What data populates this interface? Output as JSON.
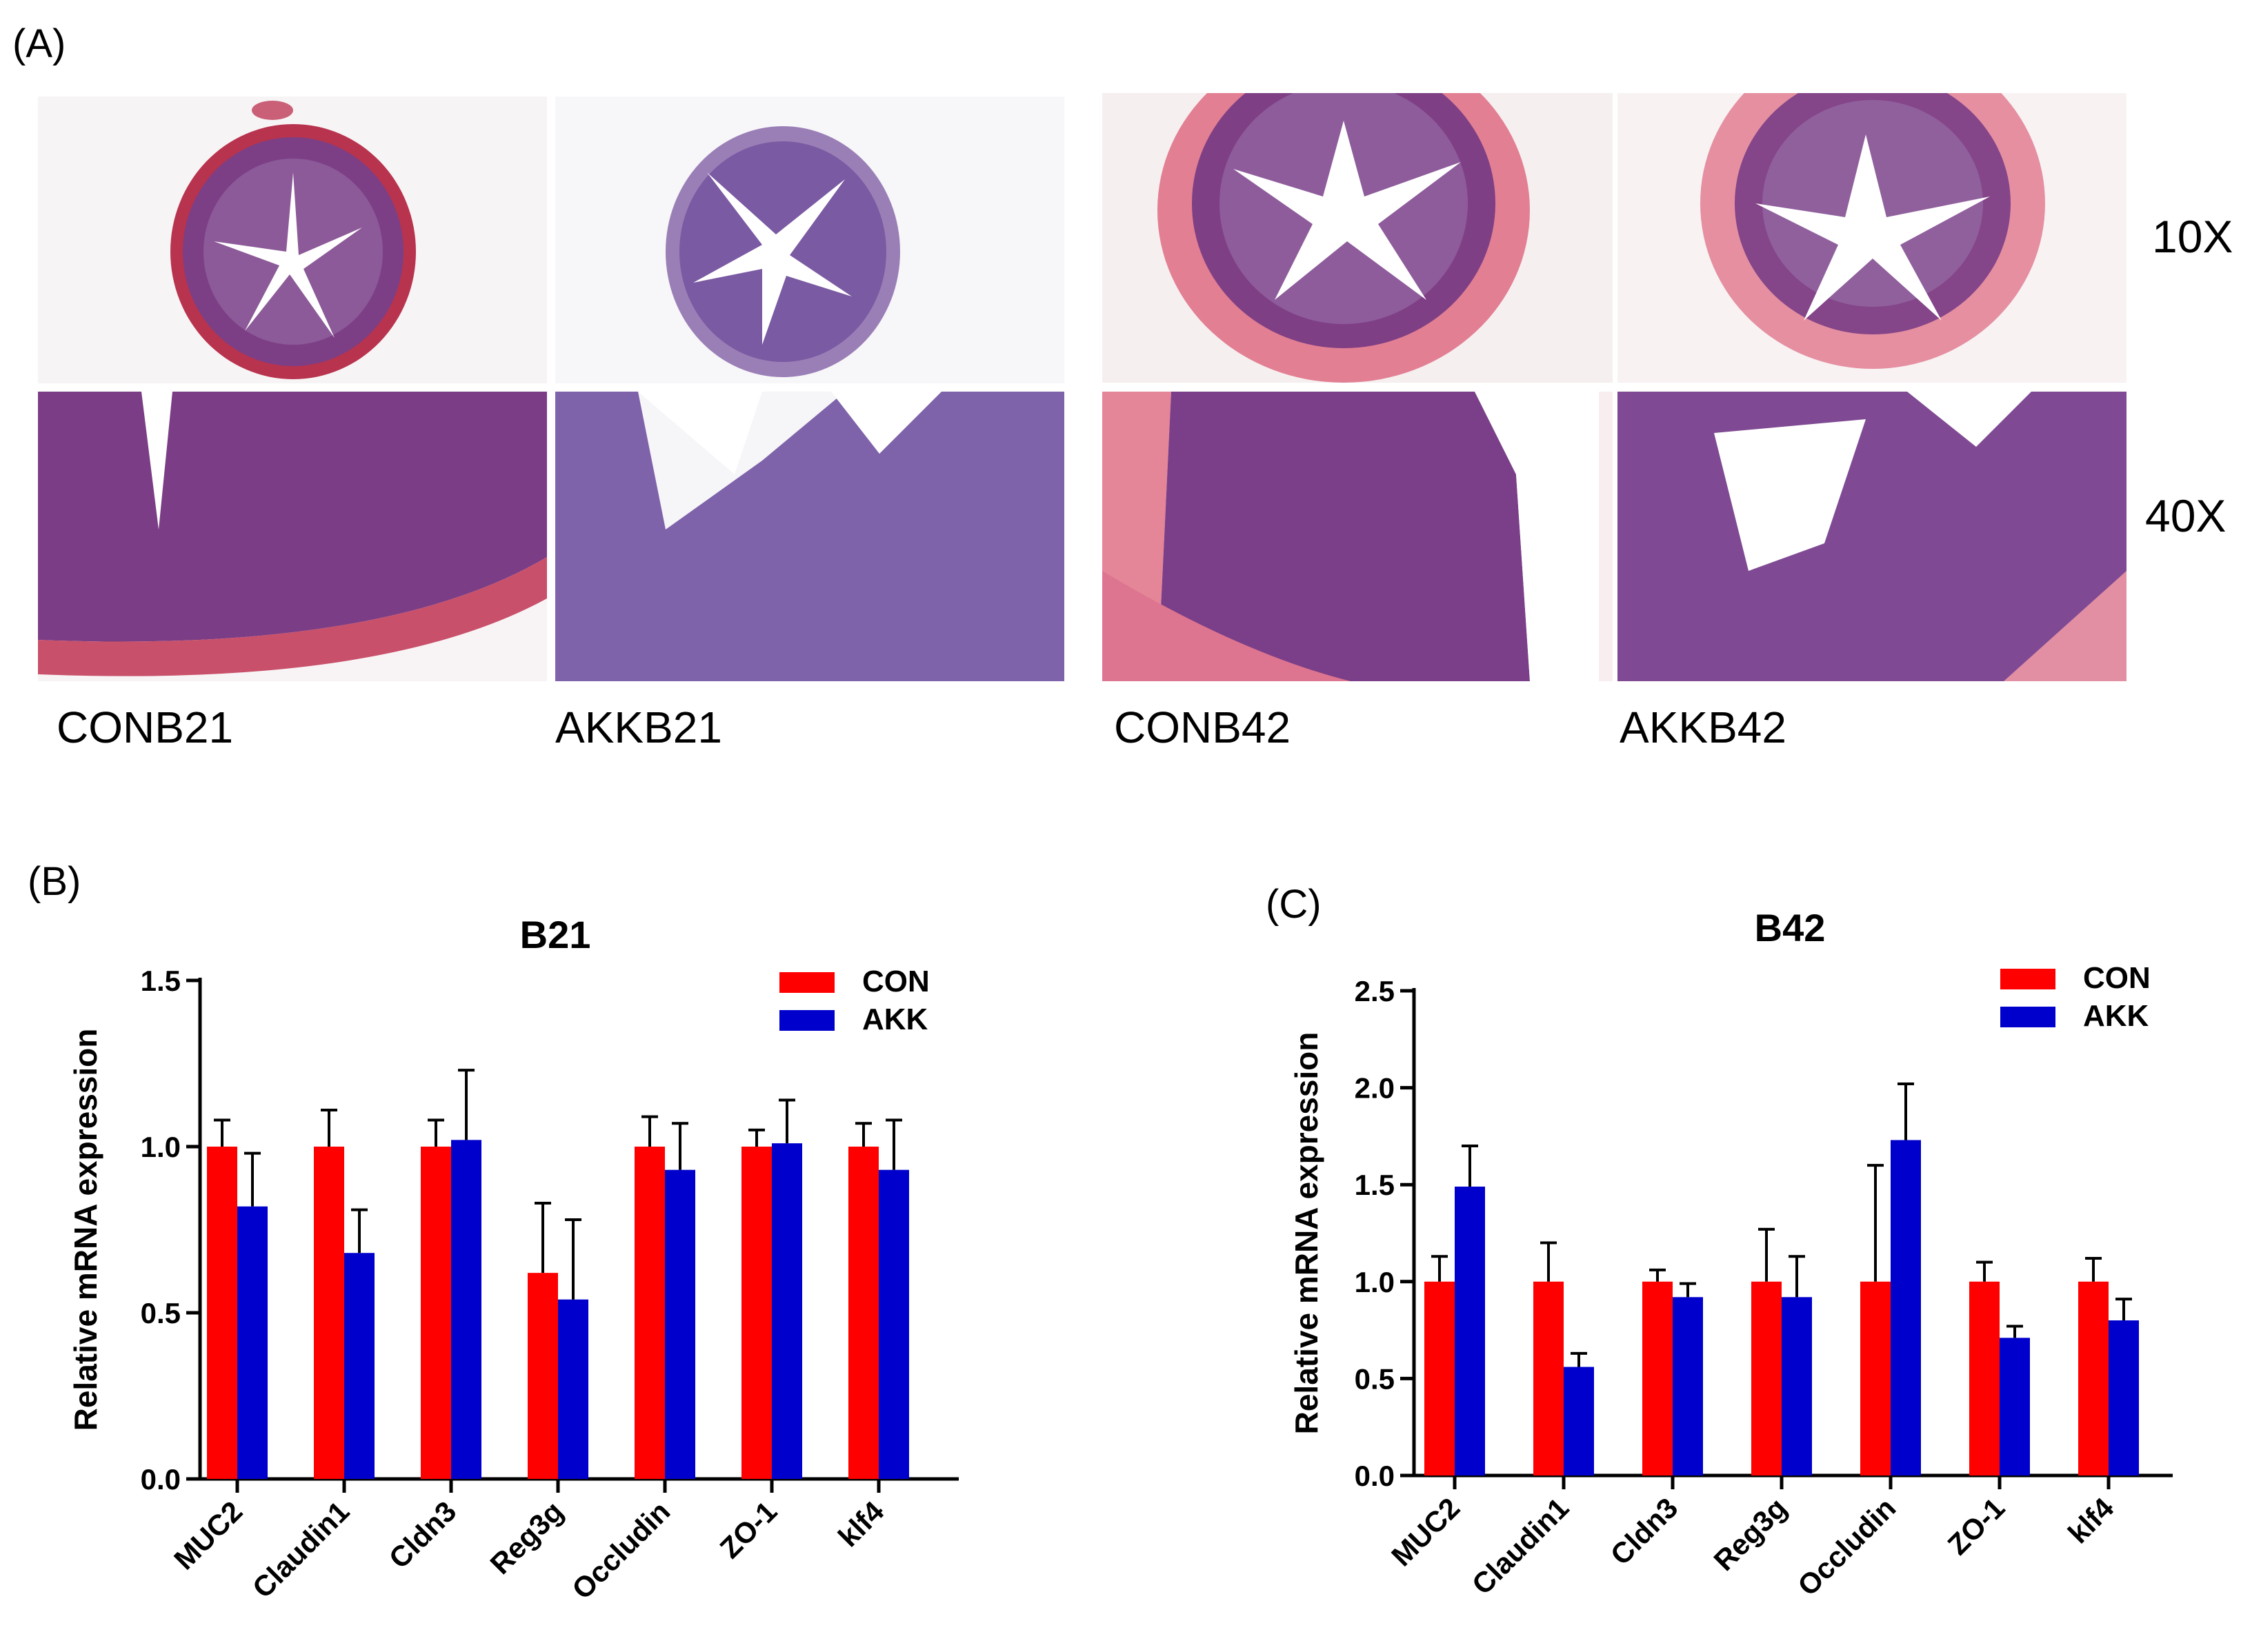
{
  "panel_a": {
    "label": "(A)",
    "magnifications": [
      "10X",
      "40X"
    ],
    "samples": [
      "CONB21",
      "AKKB21",
      "CONB42",
      "AKKB42"
    ]
  },
  "chart_data": [
    {
      "panel": "(B)",
      "type": "bar",
      "title": "B21",
      "ylabel": "Relative mRNA expression",
      "xlabel": "",
      "ylim": [
        0,
        1.5
      ],
      "yticks": [
        "0.0",
        "0.5",
        "1.0",
        "1.5"
      ],
      "ytick_values": [
        0,
        0.5,
        1.0,
        1.5
      ],
      "grid": false,
      "legend_position": "top-right",
      "categories": [
        "MUC2",
        "Claudin1",
        "Cldn3",
        "Reg3g",
        "Occludin",
        "ZO-1",
        "klf4"
      ],
      "series": [
        {
          "name": "CON",
          "color": "#ff0000",
          "values": [
            1.0,
            1.0,
            1.0,
            0.62,
            1.0,
            1.0,
            1.0
          ],
          "errors": [
            0.08,
            0.11,
            0.08,
            0.21,
            0.09,
            0.05,
            0.07
          ]
        },
        {
          "name": "AKK",
          "color": "#0000cc",
          "values": [
            0.82,
            0.68,
            1.02,
            0.54,
            0.93,
            1.01,
            0.93
          ],
          "errors": [
            0.16,
            0.13,
            0.21,
            0.24,
            0.14,
            0.13,
            0.15
          ]
        }
      ]
    },
    {
      "panel": "(C)",
      "type": "bar",
      "title": "B42",
      "ylabel": "Relative mRNA expression",
      "xlabel": "",
      "ylim": [
        0,
        2.5
      ],
      "yticks": [
        "0.0",
        "0.5",
        "1.0",
        "1.5",
        "2.0",
        "2.5"
      ],
      "ytick_values": [
        0,
        0.5,
        1.0,
        1.5,
        2.0,
        2.5
      ],
      "grid": false,
      "legend_position": "top-right",
      "categories": [
        "MUC2",
        "Claudin1",
        "Cldn3",
        "Reg3g",
        "Occludin",
        "ZO-1",
        "klf4"
      ],
      "series": [
        {
          "name": "CON",
          "color": "#ff0000",
          "values": [
            1.0,
            1.0,
            1.0,
            1.0,
            1.0,
            1.0,
            1.0
          ],
          "errors": [
            0.13,
            0.2,
            0.06,
            0.27,
            0.6,
            0.1,
            0.12
          ]
        },
        {
          "name": "AKK",
          "color": "#0000cc",
          "values": [
            1.49,
            0.56,
            0.92,
            0.92,
            1.73,
            0.71,
            0.8
          ],
          "errors": [
            0.21,
            0.07,
            0.07,
            0.21,
            0.29,
            0.06,
            0.11
          ]
        }
      ]
    }
  ]
}
